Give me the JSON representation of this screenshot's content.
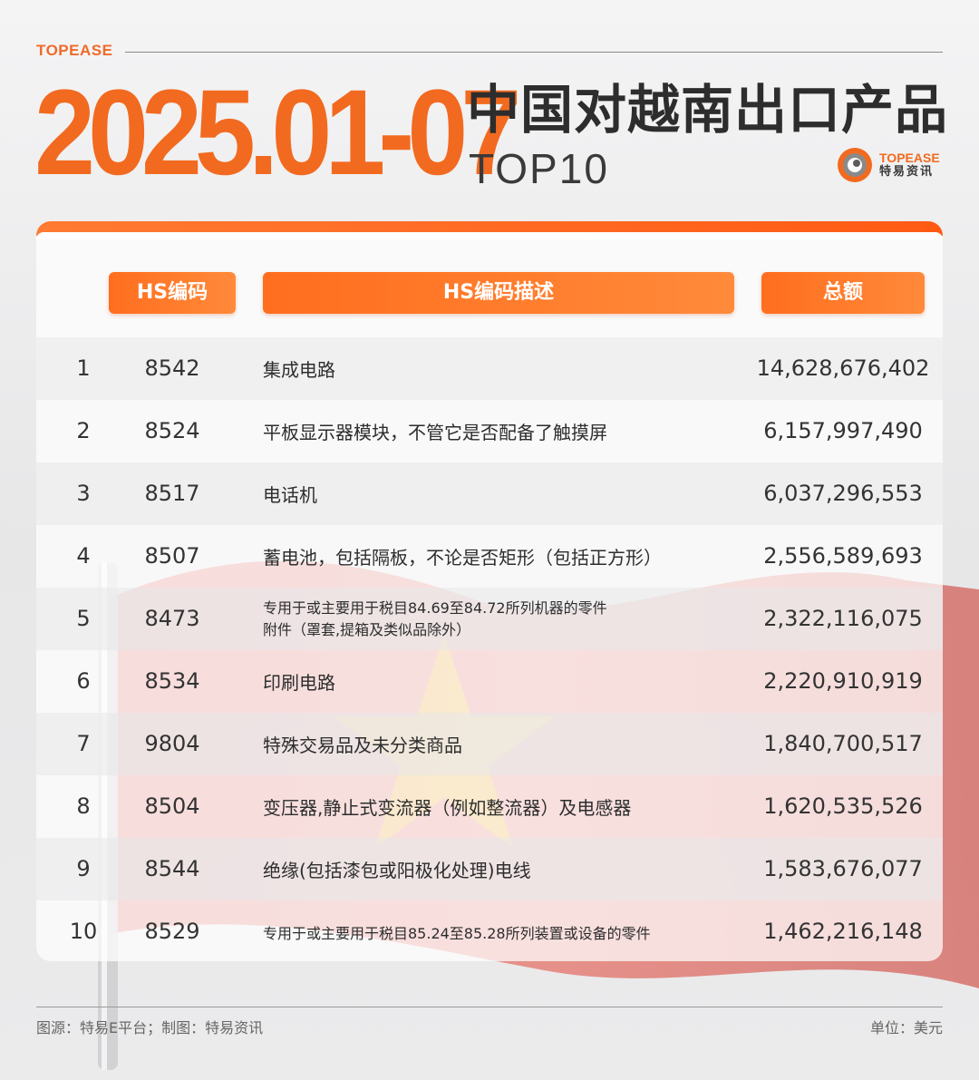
{
  "brand_small": "TOPEASE",
  "date_title": "2025.01-07",
  "title_cn": "中国对越南出口产品",
  "title_top": "TOP10",
  "logo": {
    "en": "TOPEASE",
    "cn": "特易资讯",
    "registered": "®"
  },
  "colors": {
    "accent": "#f26a1f",
    "header_gradient_start": "#ff6e1e",
    "header_gradient_end": "#ff8a3a",
    "flag_red": "#d9362b",
    "flag_star": "#f6d020"
  },
  "table": {
    "headers": {
      "code": "HS编码",
      "desc": "HS编码描述",
      "amount": "总额"
    },
    "rows": [
      {
        "rank": "1",
        "code": "8542",
        "desc": "集成电路",
        "amount": "14,628,676,402"
      },
      {
        "rank": "2",
        "code": "8524",
        "desc": "平板显示器模块，不管它是否配备了触摸屏",
        "amount": "6,157,997,490"
      },
      {
        "rank": "3",
        "code": "8517",
        "desc": "电话机",
        "amount": "6,037,296,553"
      },
      {
        "rank": "4",
        "code": "8507",
        "desc": "蓄电池，包括隔板，不论是否矩形（包括正方形）",
        "amount": "2,556,589,693"
      },
      {
        "rank": "5",
        "code": "8473",
        "desc": "专用于或主要用于税目84.69至84.72所列机器的零件",
        "desc2": "附件（罩套,提箱及类似品除外）",
        "amount": "2,322,116,075"
      },
      {
        "rank": "6",
        "code": "8534",
        "desc": "印刷电路",
        "amount": "2,220,910,919"
      },
      {
        "rank": "7",
        "code": "9804",
        "desc": "特殊交易品及未分类商品",
        "amount": "1,840,700,517"
      },
      {
        "rank": "8",
        "code": "8504",
        "desc": "变压器,静止式变流器（例如整流器）及电感器",
        "amount": "1,620,535,526"
      },
      {
        "rank": "9",
        "code": "8544",
        "desc": "绝缘(包括漆包或阳极化处理)电线",
        "amount": "1,583,676,077"
      },
      {
        "rank": "10",
        "code": "8529",
        "desc": "专用于或主要用于税目85.24至85.28所列装置或设备的零件",
        "amount": "1,462,216,148"
      }
    ]
  },
  "footer": {
    "source": "图源：特易E平台；制图：特易资讯",
    "unit": "单位：美元"
  }
}
